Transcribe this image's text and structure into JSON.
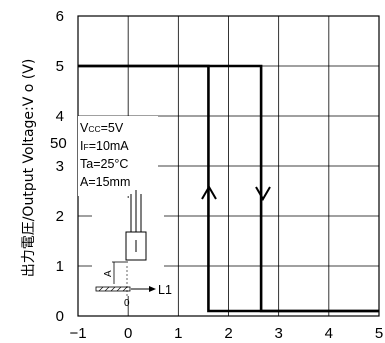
{
  "chart_data": {
    "type": "line",
    "ylabel": "出力電圧/Output Voltage:V o (V)",
    "xlabel": "",
    "xlim": [
      -1,
      5
    ],
    "ylim": [
      0,
      6
    ],
    "x_ticks": [
      "−1",
      "0",
      "1",
      "2",
      "3",
      "4",
      "5"
    ],
    "y_ticks": [
      "0",
      "1",
      "2",
      "3",
      "4",
      "5",
      "6"
    ],
    "grid": true,
    "series": [
      {
        "direction": "up",
        "x": [
          -1,
          1.6,
          1.6,
          5
        ],
        "y": [
          5,
          5,
          0.1,
          0.1
        ]
      },
      {
        "direction": "down",
        "x": [
          -1,
          2.65,
          2.65,
          5
        ],
        "y": [
          5,
          5,
          0.1,
          0.1
        ]
      }
    ],
    "conditions": [
      "Vcc=5V",
      "IF=10mA",
      "Ta=25°C",
      "A=15mm"
    ],
    "annotations": {
      "extra_label": "50",
      "diagram_A": "A",
      "diagram_zero": "0",
      "diagram_L1": "L1"
    },
    "colors": {
      "line": "#000000",
      "grid": "#000000",
      "background": "#ffffff"
    }
  }
}
